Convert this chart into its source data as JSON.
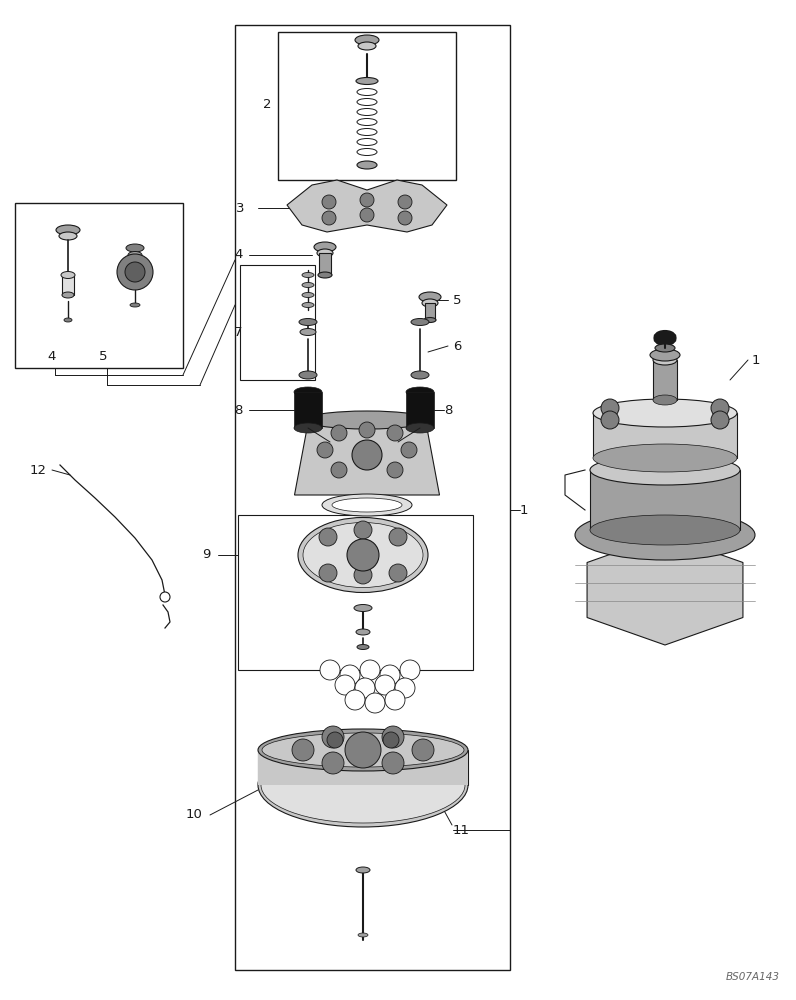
{
  "bg_color": "#ffffff",
  "lc": "#1a1a1a",
  "lw": 0.8,
  "watermark": "BS07A143",
  "fig_w": 7.96,
  "fig_h": 10.0,
  "dpi": 100
}
